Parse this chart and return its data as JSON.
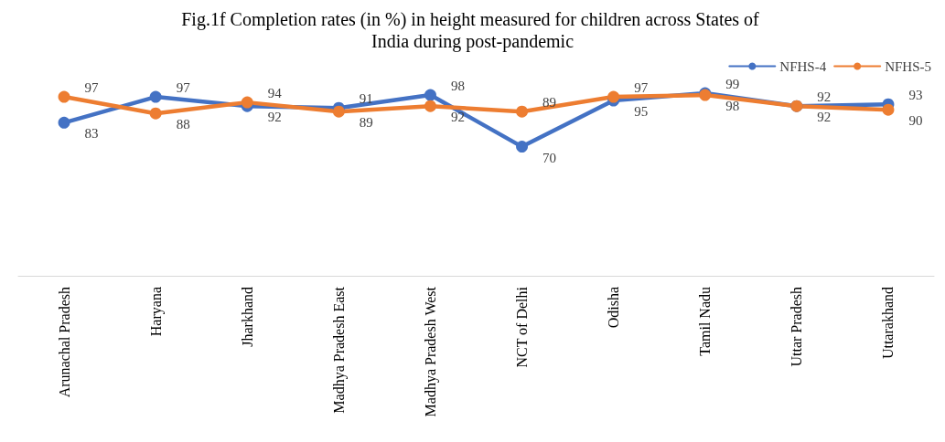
{
  "chart_data": {
    "type": "line",
    "title": "Fig.1f Completion rates (in %) in height measured for children across States of India during post-pandemic",
    "categories": [
      "Arunachal Pradesh",
      "Haryana",
      "Jharkhand",
      "Madhya Pradesh East",
      "Madhya Pradesh West",
      "NCT of Delhi",
      "Odisha",
      "Tamil Nadu",
      "Uttar Pradesh",
      "Uttarakhand"
    ],
    "series": [
      {
        "name": "NFHS-4",
        "color": "#4472c4",
        "values": [
          83,
          97,
          92,
          91,
          98,
          70,
          95,
          99,
          92,
          93
        ]
      },
      {
        "name": "NFHS-5",
        "color": "#ed7d31",
        "values": [
          97,
          88,
          94,
          89,
          92,
          89,
          97,
          98,
          92,
          90
        ]
      }
    ],
    "data_labels": true,
    "legend": "top right",
    "marker": "circle",
    "line_style": "solid"
  }
}
